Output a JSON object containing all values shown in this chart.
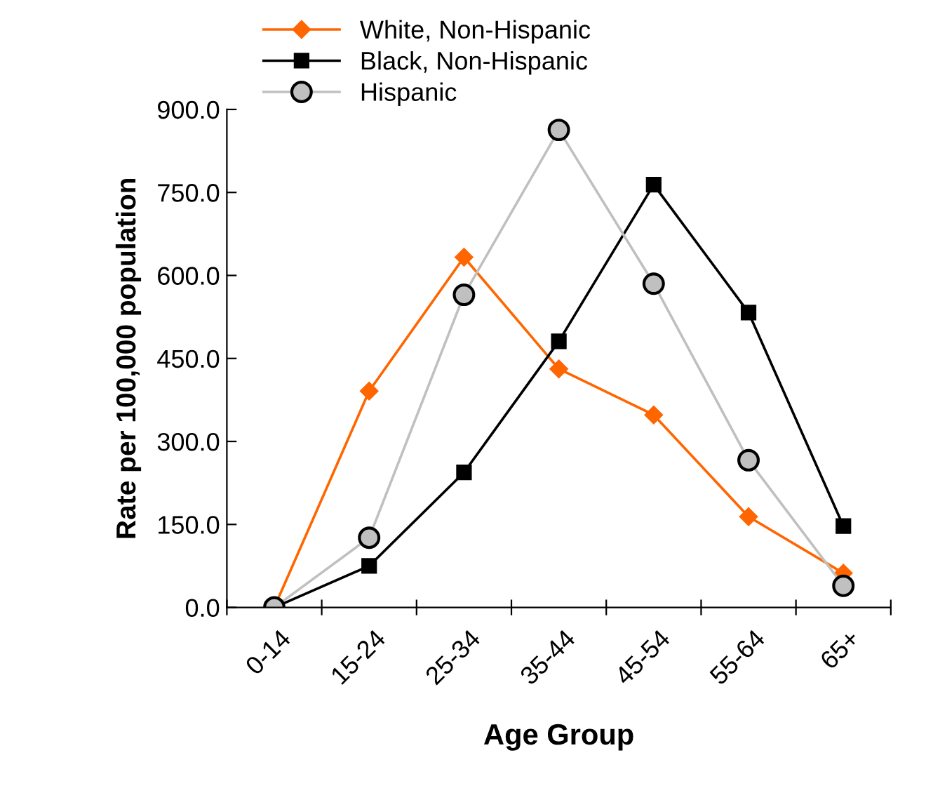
{
  "chart_data": {
    "type": "line",
    "xlabel": "Age Group",
    "ylabel": "Rate per 100,000 population",
    "categories": [
      "0-14",
      "15-24",
      "25-34",
      "35-44",
      "45-54",
      "55-64",
      "65+"
    ],
    "series": [
      {
        "name": "White, Non-Hispanic",
        "color": "#ff6600",
        "marker": "diamond",
        "values": [
          0,
          391,
          633,
          431,
          348,
          164,
          62
        ]
      },
      {
        "name": "Black, Non-Hispanic",
        "color": "#000000",
        "marker": "square",
        "values": [
          0,
          75,
          244,
          481,
          764,
          533,
          147
        ]
      },
      {
        "name": "Hispanic",
        "color": "#c0c0c0",
        "marker": "circle",
        "values": [
          0,
          126,
          565,
          863,
          585,
          266,
          39
        ]
      }
    ],
    "ylim": [
      0,
      900
    ],
    "yticks": [
      {
        "value": 0,
        "label": "0.0"
      },
      {
        "value": 150,
        "label": "150.0"
      },
      {
        "value": 300,
        "label": "300.0"
      },
      {
        "value": 450,
        "label": "450.0"
      },
      {
        "value": 600,
        "label": "600.0"
      },
      {
        "value": 750,
        "label": "750.0"
      },
      {
        "value": 900,
        "label": "900.0"
      }
    ],
    "grid": false,
    "legend": "top left"
  }
}
